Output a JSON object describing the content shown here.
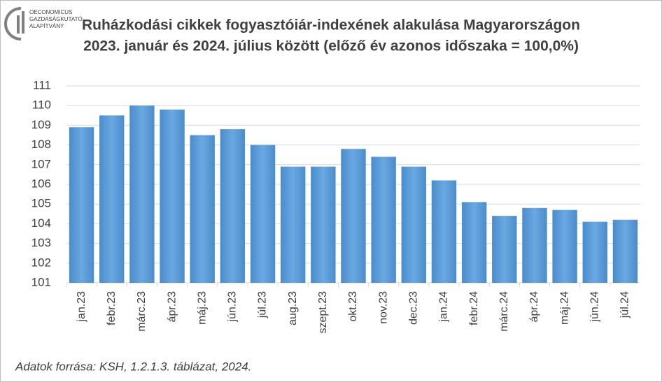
{
  "logo": [
    "OECONOMICUS",
    "GAZDASÁGKUTATÓ",
    "ALAPÍTVÁNY"
  ],
  "chart_data": {
    "type": "bar",
    "title": [
      "Ruházkodási cikkek fogyasztóiár-indexének alakulása Magyarországon",
      "2023. január és 2024. július között (előző év azonos időszaka = 100,0%)"
    ],
    "categories": [
      "jan.23",
      "febr.23",
      "márc.23",
      "ápr.23",
      "máj.23",
      "jún.23",
      "júl.23",
      "aug.23",
      "szept.23",
      "okt.23",
      "nov.23",
      "dec.23",
      "jan.24",
      "febr.24",
      "márc.24",
      "ápr.24",
      "máj.24",
      "jún.24",
      "júl.24"
    ],
    "values": [
      108.9,
      109.5,
      110.0,
      109.8,
      108.5,
      108.8,
      108.0,
      106.9,
      106.9,
      107.8,
      107.4,
      106.9,
      106.2,
      105.1,
      104.4,
      104.8,
      104.7,
      104.1,
      104.2
    ],
    "color": "#5b9bd5",
    "ylim": [
      101,
      111
    ],
    "yticks": [
      101,
      102,
      103,
      104,
      105,
      106,
      107,
      108,
      109,
      110,
      111
    ],
    "grid": true,
    "source": "Adatok forrása: KSH, 1.2.1.3. táblázat, 2024."
  }
}
